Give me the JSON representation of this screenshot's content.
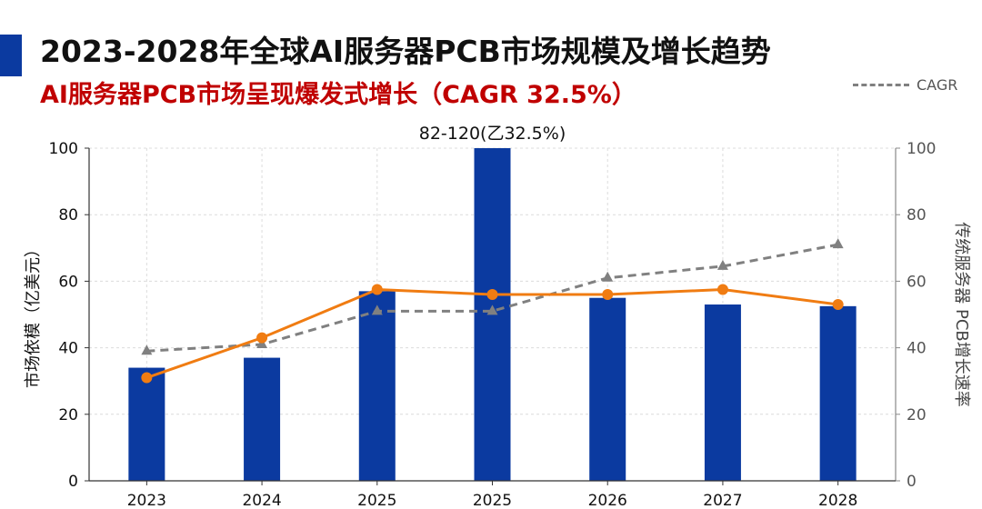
{
  "title": "2023-2028年全球AI服务器PCB市场规模及增长趋势",
  "subtitle": "AI服务器PCB市场呈现爆发式增长（CAGR 32.5%）",
  "colors": {
    "title_bar": "#0b3aa0",
    "subtitle": "#c00000",
    "bar": "#0b3aa0",
    "growth_line": "#f07c12",
    "cagr_line": "#808080",
    "grid": "#dcdcdc"
  },
  "chart_data": {
    "type": "bar",
    "categories": [
      "2023",
      "2024",
      "2025",
      "2025",
      "2026",
      "2027",
      "2028"
    ],
    "series": [
      {
        "name": "",
        "type": "bar",
        "axis": "left",
        "values": [
          34,
          37,
          57,
          100,
          55,
          53,
          52.5
        ]
      },
      {
        "name": "",
        "type": "line",
        "axis": "left",
        "marker": "circle",
        "values": [
          31,
          43,
          57.5,
          56,
          56,
          57.5,
          53
        ]
      },
      {
        "name": "CAGR",
        "type": "line",
        "style": "dashed",
        "axis": "right",
        "marker": "triangle",
        "values": [
          39,
          41,
          51,
          51,
          61,
          64.5,
          71
        ]
      }
    ],
    "annotations": [
      {
        "text": "82-120(乙32.5%)",
        "category_index": 3
      }
    ],
    "ylabel": "市场依模（亿美元）",
    "y2label": "传统服务器 PCB增长速率",
    "ylim": [
      0,
      100
    ],
    "y2lim": [
      0,
      100
    ],
    "yticks": [
      "0",
      "20",
      "40",
      "60",
      "80",
      "100"
    ],
    "y2ticks": [
      "0",
      "20",
      "40",
      "60",
      "80",
      "100"
    ],
    "legend_position": "top-right",
    "grid": true
  }
}
